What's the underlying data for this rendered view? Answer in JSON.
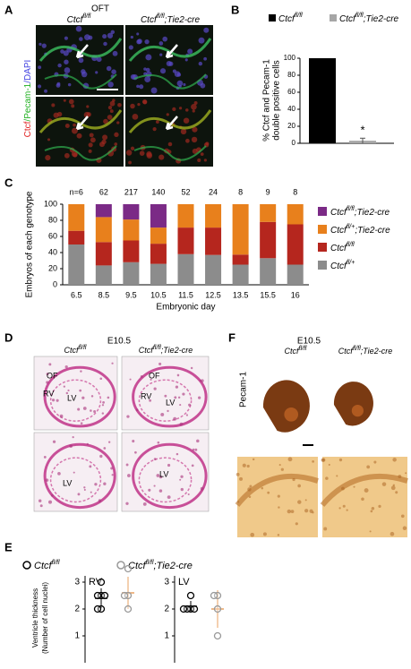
{
  "figure": {
    "a": {
      "label": "A",
      "title": "OFT",
      "columns": [
        [
          "Ctcf",
          "fl/fl"
        ],
        [
          "Ctcf",
          "fl/fl",
          ";Tie2-cre"
        ]
      ],
      "stain": [
        "Ctcf",
        "/Pecam-1",
        "/DAPI"
      ]
    },
    "d": {
      "label": "D",
      "stage": "E10.5",
      "columns": [
        [
          "Ctcf",
          "fl/fl"
        ],
        [
          "Ctcf",
          "fl/fl",
          ";Tie2-cre"
        ]
      ],
      "regions": [
        "OF",
        "RV",
        "LV",
        "OF",
        "RV",
        "LV",
        "LV",
        "LV"
      ]
    },
    "f": {
      "label": "F",
      "stage": "E10.5",
      "columns": [
        [
          "Ctcf",
          "fl/fl"
        ],
        [
          "Ctcf",
          "fl/fl",
          ";Tie2-cre"
        ]
      ],
      "stain": "Pecam-1"
    }
  },
  "chart_data": [
    {
      "type": "bar",
      "label": "B",
      "ylabel": [
        "% Ctcf and Pecam-1",
        "double positive cells"
      ],
      "series": [
        {
          "name": [
            "Ctcf",
            "fl/fl"
          ],
          "color": "#000000",
          "values": [
            100
          ]
        },
        {
          "name": [
            "Ctcf",
            "fl/fl",
            ";Tie2-cre"
          ],
          "color": "#a6a6a6",
          "values": [
            3
          ],
          "errors": [
            3
          ],
          "annotation": "*"
        }
      ],
      "ylim": [
        0,
        100
      ],
      "yticks": [
        0,
        20,
        40,
        60,
        80,
        100
      ]
    },
    {
      "type": "stacked_bar",
      "label": "C",
      "ylabel": "Embryos of each genotype",
      "xlabel": "Embryonic day",
      "categories": [
        "6.5",
        "8.5",
        "9.5",
        "10.5",
        "11.5",
        "12.5",
        "13.5",
        "15.5",
        "16"
      ],
      "annotations": [
        "n=6",
        "62",
        "217",
        "140",
        "52",
        "24",
        "8",
        "9",
        "8"
      ],
      "series": [
        {
          "name": [
            "Ctcf",
            "fl/+"
          ],
          "color": "#8c8c8c",
          "values": [
            50,
            24,
            28,
            26,
            38,
            37,
            25,
            33,
            25
          ]
        },
        {
          "name": [
            "Ctcf",
            "fl/fl"
          ],
          "color": "#b5261e",
          "values": [
            17,
            29,
            27,
            25,
            33,
            34,
            12.5,
            45,
            50
          ]
        },
        {
          "name": [
            "Ctcf",
            "fl/+",
            ";Tie2-cre"
          ],
          "color": "#e8801c",
          "values": [
            33,
            31,
            26,
            20,
            29,
            29,
            62.5,
            22,
            25
          ]
        },
        {
          "name": [
            "Ctcf",
            "fl/fl",
            ";Tie2-cre"
          ],
          "color": "#7b2a86",
          "values": [
            0,
            16,
            19,
            29,
            0,
            0,
            0,
            0,
            0
          ]
        }
      ],
      "ylim": [
        0,
        100
      ],
      "yticks": [
        0,
        20,
        40,
        60,
        80,
        100
      ]
    },
    {
      "type": "strip",
      "label": "E",
      "ylabel": [
        "Ventricle thickness",
        "(Number of cell nuclei)"
      ],
      "legend": [
        {
          "name": [
            "Ctcf",
            "fl/fl"
          ],
          "color": "#000000"
        },
        {
          "name": [
            "Ctcf",
            "fl/fl",
            ";Tie2-cre"
          ],
          "color": "#999999"
        }
      ],
      "ylim": [
        0,
        3.5
      ],
      "yticks": [
        1,
        2,
        3
      ],
      "panels": [
        {
          "title": "RV",
          "groups": [
            {
              "values": [
                3,
                2.5,
                2.5,
                2.5,
                2,
                2
              ],
              "mean": 2.4,
              "sd": 0.37,
              "mean_color": "#000000"
            },
            {
              "values": [
                3.5,
                2.5,
                2.5,
                2
              ],
              "mean": 2.6,
              "sd": 0.6,
              "mean_color": "#e8a060"
            }
          ]
        },
        {
          "title": "LV",
          "groups": [
            {
              "values": [
                2.5,
                2,
                2,
                2,
                2
              ],
              "mean": 2.1,
              "sd": 0.2,
              "mean_color": "#000000"
            },
            {
              "values": [
                2.5,
                2.5,
                2,
                1
              ],
              "mean": 2.0,
              "sd": 0.7,
              "mean_color": "#e8a060"
            }
          ]
        }
      ]
    }
  ]
}
